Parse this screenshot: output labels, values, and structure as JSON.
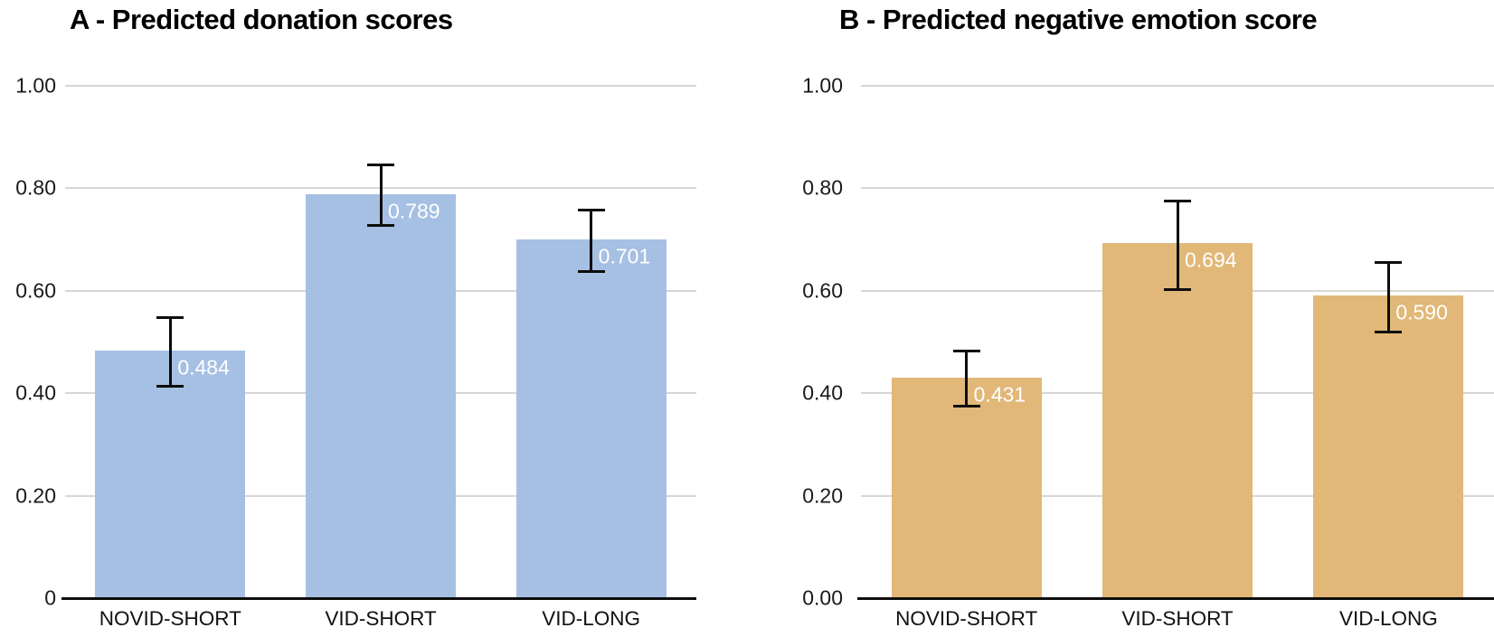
{
  "page": {
    "background": "#ffffff"
  },
  "style": {
    "gridline_color": "#d7d7d7",
    "axis_color": "#0d0d0d",
    "error_bar_color": "#0d0d0d",
    "title_color": "#000000",
    "tick_label_color": "#1a1a1a"
  },
  "chart_data": [
    {
      "id": "A",
      "type": "bar",
      "title": "A - Predicted donation scores",
      "categories": [
        "NOVID-SHORT",
        "VID-SHORT",
        "VID-LONG"
      ],
      "values": [
        0.484,
        0.789,
        0.701
      ],
      "value_labels": [
        "0.484",
        "0.789",
        "0.701"
      ],
      "error_low": [
        0.413,
        0.727,
        0.638
      ],
      "error_high": [
        0.547,
        0.845,
        0.758
      ],
      "bar_color": "#a5c0e3",
      "value_label_color": "#ffffff",
      "y_ticks": [
        {
          "v": 1.0,
          "label": "1.00"
        },
        {
          "v": 0.8,
          "label": "0.80"
        },
        {
          "v": 0.6,
          "label": "0.60"
        },
        {
          "v": 0.4,
          "label": "0.40"
        },
        {
          "v": 0.2,
          "label": "0.20"
        },
        {
          "v": 0.0,
          "label": "0"
        }
      ],
      "ylim": [
        0,
        1.0
      ],
      "grid": true,
      "legend": "none",
      "xlabel": "",
      "ylabel": ""
    },
    {
      "id": "B",
      "type": "bar",
      "title": "B - Predicted negative emotion score",
      "categories": [
        "NOVID-SHORT",
        "VID-SHORT",
        "VID-LONG"
      ],
      "values": [
        0.431,
        0.694,
        0.59
      ],
      "value_labels": [
        "0.431",
        "0.694",
        "0.590"
      ],
      "error_low": [
        0.374,
        0.603,
        0.519
      ],
      "error_high": [
        0.483,
        0.776,
        0.656
      ],
      "bar_color": "#e1b878",
      "value_label_color": "#ffffff",
      "y_ticks": [
        {
          "v": 1.0,
          "label": "1.00"
        },
        {
          "v": 0.8,
          "label": "0.80"
        },
        {
          "v": 0.6,
          "label": "0.60"
        },
        {
          "v": 0.4,
          "label": "0.40"
        },
        {
          "v": 0.2,
          "label": "0.20"
        },
        {
          "v": 0.0,
          "label": "0.00"
        }
      ],
      "ylim": [
        0,
        1.0
      ],
      "grid": true,
      "legend": "none",
      "xlabel": "",
      "ylabel": ""
    }
  ]
}
